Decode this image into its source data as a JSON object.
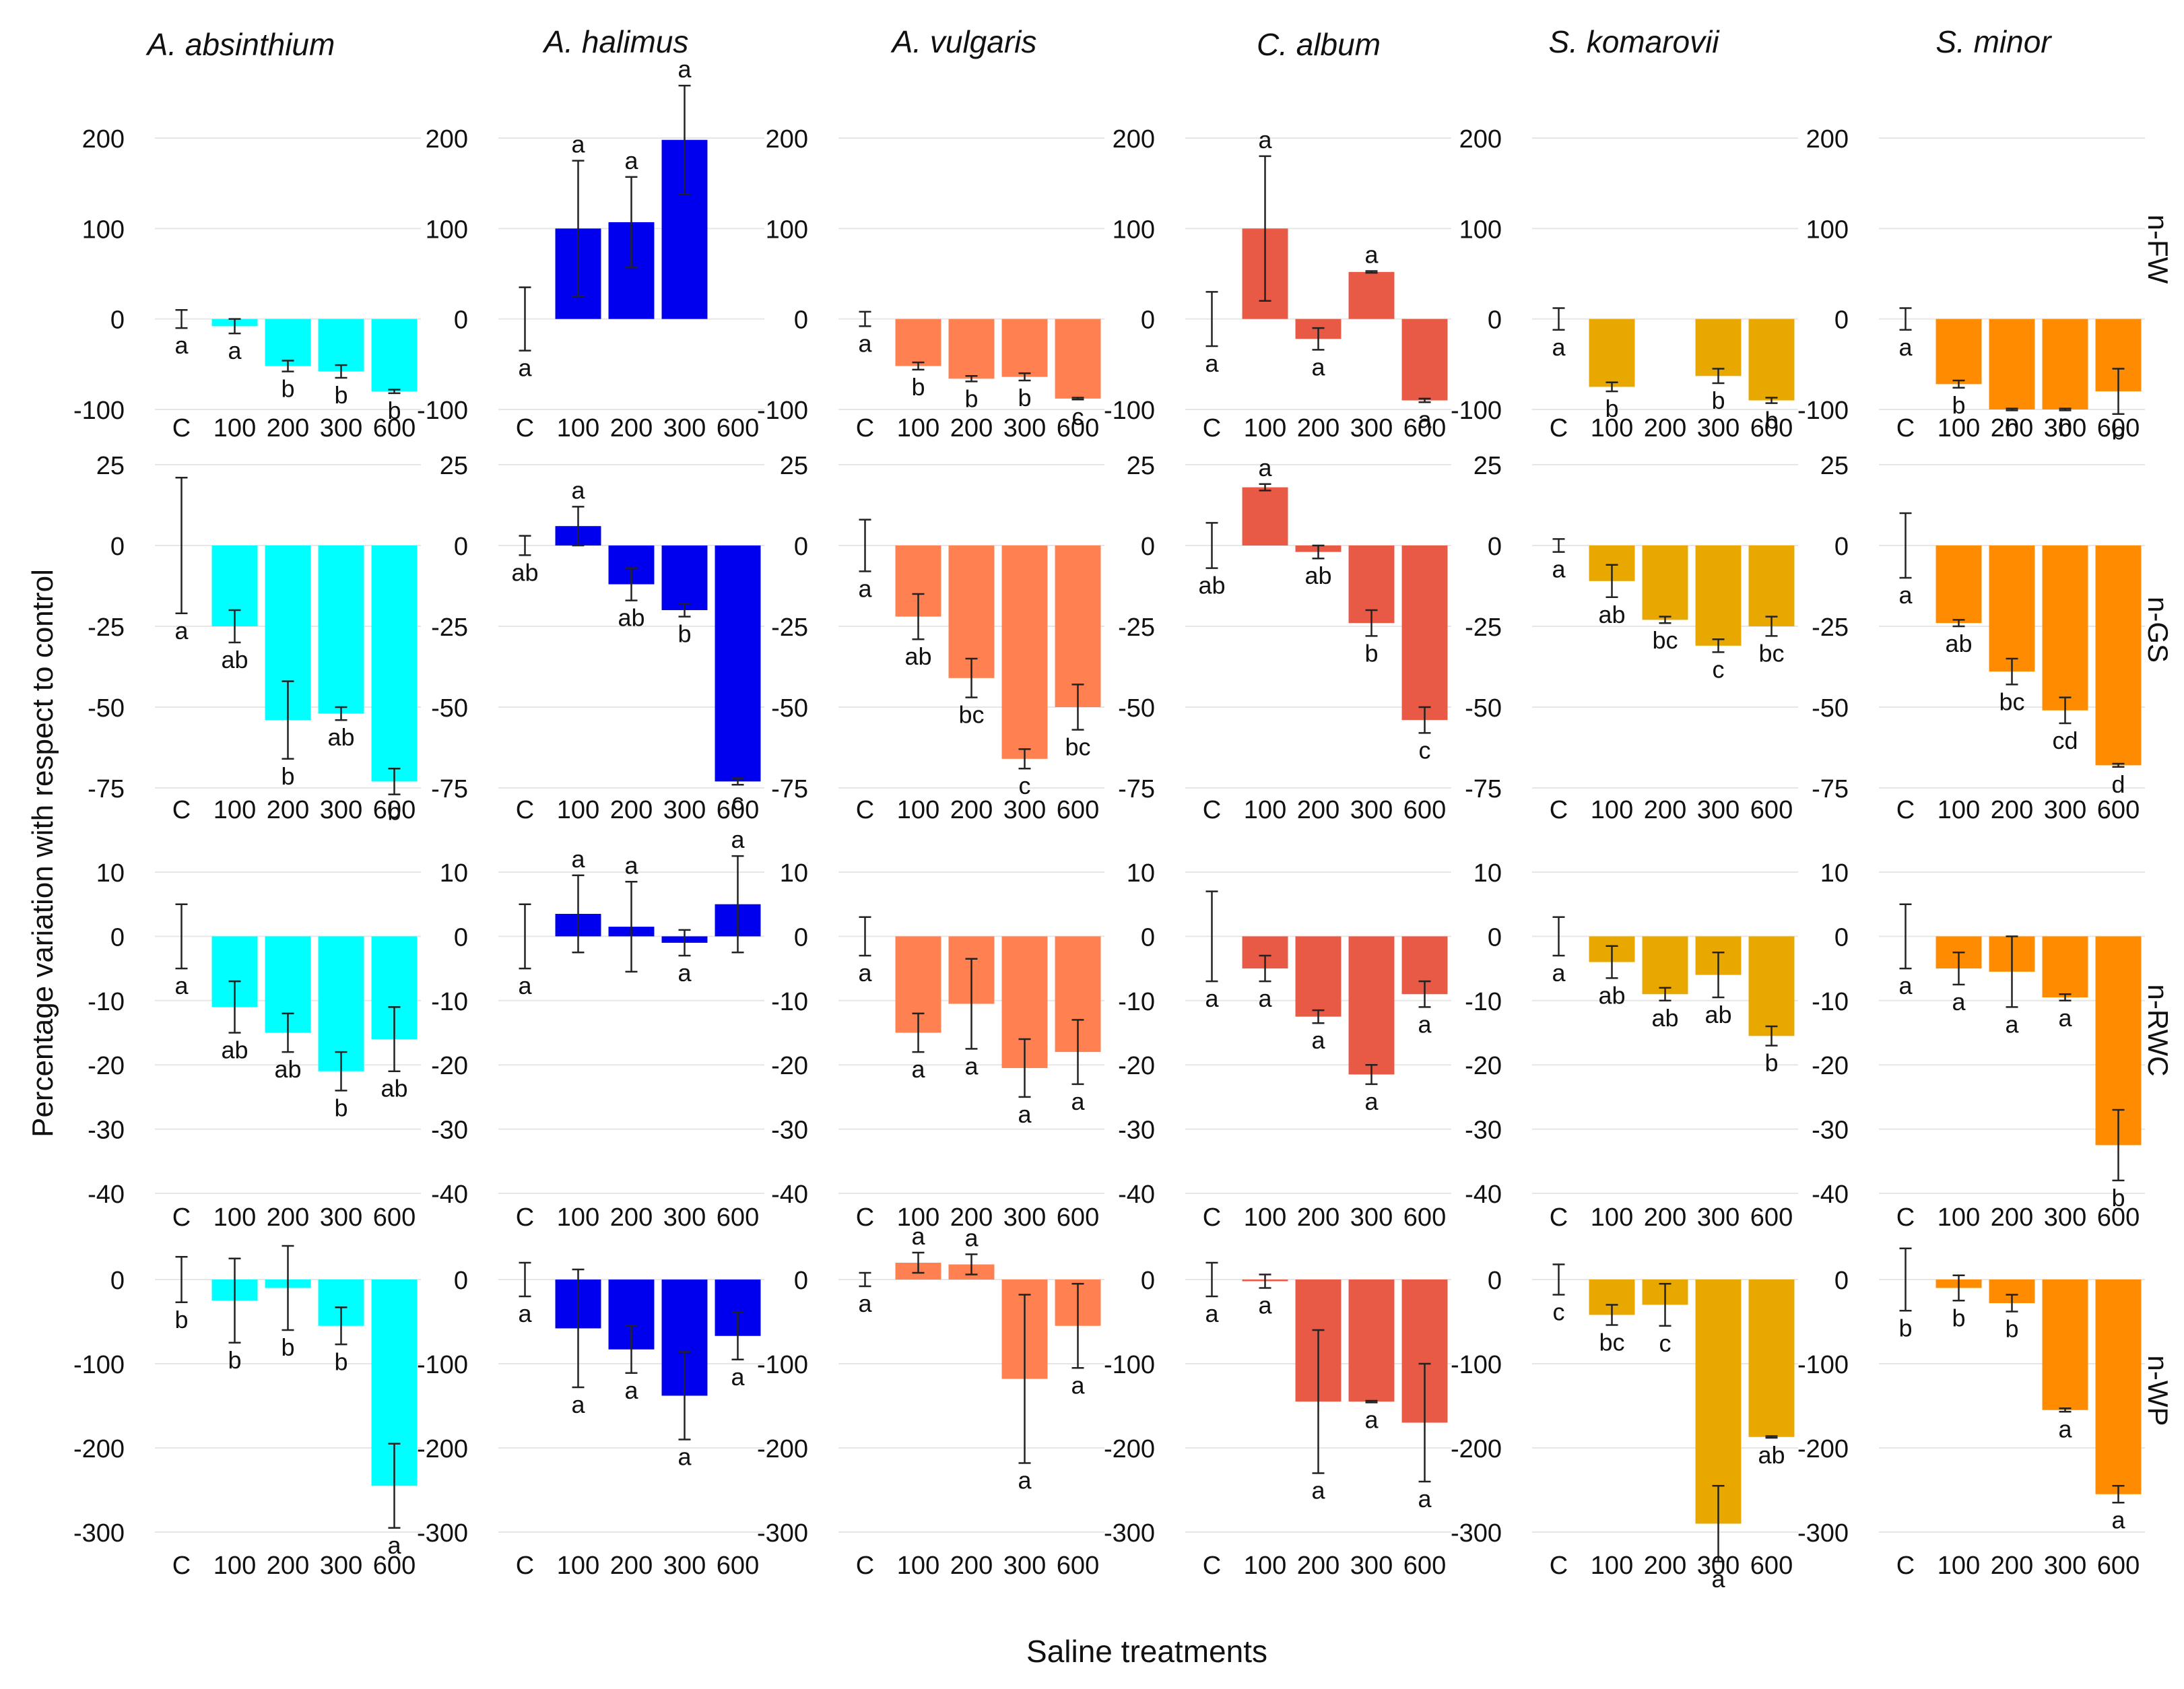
{
  "figure": {
    "xlabel": "Saline treatments",
    "ylabel": "Percentage variation with respect to control",
    "species": [
      "A. absinthium",
      "A. halimus",
      "A. vulgaris",
      "C. album",
      "S. komarovii",
      "S. minor"
    ],
    "colors": [
      "#00FFFF",
      "#0000EE",
      "#FF8050",
      "#E85A45",
      "#E8A800",
      "#FF8C00"
    ],
    "variables": [
      "n-FW",
      "n-GS",
      "n-RWC",
      "n-WP"
    ]
  },
  "chart_data": [
    {
      "type": "bar",
      "species": "A. absinthium",
      "variable": "n-FW",
      "categories": [
        "C",
        "100",
        "200",
        "300",
        "600"
      ],
      "ylim": [
        -100,
        200
      ],
      "yticks": [
        200,
        100,
        0,
        -100
      ],
      "values": [
        0,
        -8,
        -52,
        -58,
        -80
      ],
      "errors": [
        10,
        8,
        6,
        7,
        2
      ],
      "letters": [
        "a",
        "a",
        "b",
        "b",
        "b"
      ]
    },
    {
      "type": "bar",
      "species": "A. halimus",
      "variable": "n-FW",
      "categories": [
        "C",
        "100",
        "200",
        "300",
        "600"
      ],
      "ylim": [
        -100,
        200
      ],
      "yticks": [
        200,
        100,
        0,
        -100
      ],
      "values": [
        0,
        100,
        107,
        198,
        null
      ],
      "errors": [
        35,
        75,
        50,
        60,
        0
      ],
      "letters": [
        "a",
        "a",
        "a",
        "a",
        ""
      ]
    },
    {
      "type": "bar",
      "species": "A. vulgaris",
      "variable": "n-FW",
      "categories": [
        "C",
        "100",
        "200",
        "300",
        "600"
      ],
      "ylim": [
        -100,
        200
      ],
      "yticks": [
        200,
        100,
        0,
        -100
      ],
      "values": [
        0,
        -52,
        -66,
        -64,
        -88
      ],
      "errors": [
        8,
        4,
        3,
        4,
        1
      ],
      "letters": [
        "a",
        "b",
        "b",
        "b",
        "c"
      ]
    },
    {
      "type": "bar",
      "species": "C. album",
      "variable": "n-FW",
      "categories": [
        "C",
        "100",
        "200",
        "300",
        "600"
      ],
      "ylim": [
        -100,
        200
      ],
      "yticks": [
        200,
        100,
        0,
        -100
      ],
      "values": [
        0,
        100,
        -22,
        52,
        -90
      ],
      "errors": [
        30,
        80,
        12,
        1,
        2
      ],
      "letters": [
        "a",
        "a",
        "a",
        "a",
        "a"
      ]
    },
    {
      "type": "bar",
      "species": "S. komarovii",
      "variable": "n-FW",
      "categories": [
        "C",
        "100",
        "200",
        "300",
        "600"
      ],
      "ylim": [
        -100,
        200
      ],
      "yticks": [
        200,
        100,
        0,
        -100
      ],
      "values": [
        0,
        -75,
        null,
        -63,
        -90
      ],
      "errors": [
        12,
        5,
        0,
        8,
        3
      ],
      "letters": [
        "a",
        "b",
        "",
        "b",
        "b"
      ]
    },
    {
      "type": "bar",
      "species": "S. minor",
      "variable": "n-FW",
      "categories": [
        "C",
        "100",
        "200",
        "300",
        "600"
      ],
      "ylim": [
        -100,
        200
      ],
      "yticks": [
        200,
        100,
        0,
        -100
      ],
      "values": [
        0,
        -72,
        -100,
        -100,
        -80
      ],
      "errors": [
        12,
        4,
        1,
        1,
        25
      ],
      "letters": [
        "a",
        "b",
        "b",
        "b",
        "b"
      ]
    },
    {
      "type": "bar",
      "species": "A. absinthium",
      "variable": "n-GS",
      "categories": [
        "C",
        "100",
        "200",
        "300",
        "600"
      ],
      "ylim": [
        -75,
        25
      ],
      "yticks": [
        25,
        0,
        -25,
        -50,
        -75
      ],
      "values": [
        0,
        -25,
        -54,
        -52,
        -73
      ],
      "errors": [
        21,
        5,
        12,
        2,
        4
      ],
      "letters": [
        "a",
        "ab",
        "b",
        "ab",
        "b"
      ]
    },
    {
      "type": "bar",
      "species": "A. halimus",
      "variable": "n-GS",
      "categories": [
        "C",
        "100",
        "200",
        "300",
        "600"
      ],
      "ylim": [
        -75,
        25
      ],
      "yticks": [
        25,
        0,
        -25,
        -50,
        -75
      ],
      "values": [
        0,
        6,
        -12,
        -20,
        -73
      ],
      "errors": [
        3,
        6,
        5,
        2,
        1
      ],
      "letters": [
        "ab",
        "a",
        "ab",
        "b",
        "c"
      ]
    },
    {
      "type": "bar",
      "species": "A. vulgaris",
      "variable": "n-GS",
      "categories": [
        "C",
        "100",
        "200",
        "300",
        "600"
      ],
      "ylim": [
        -75,
        25
      ],
      "yticks": [
        25,
        0,
        -25,
        -50,
        -75
      ],
      "values": [
        0,
        -22,
        -41,
        -66,
        -50
      ],
      "errors": [
        8,
        7,
        6,
        3,
        7
      ],
      "letters": [
        "a",
        "ab",
        "bc",
        "c",
        "bc"
      ]
    },
    {
      "type": "bar",
      "species": "C. album",
      "variable": "n-GS",
      "categories": [
        "C",
        "100",
        "200",
        "300",
        "600"
      ],
      "ylim": [
        -75,
        25
      ],
      "yticks": [
        25,
        0,
        -25,
        -50,
        -75
      ],
      "values": [
        0,
        18,
        -2,
        -24,
        -54
      ],
      "errors": [
        7,
        1,
        2,
        4,
        4
      ],
      "letters": [
        "ab",
        "a",
        "ab",
        "b",
        "c"
      ]
    },
    {
      "type": "bar",
      "species": "S. komarovii",
      "variable": "n-GS",
      "categories": [
        "C",
        "100",
        "200",
        "300",
        "600"
      ],
      "ylim": [
        -75,
        25
      ],
      "yticks": [
        25,
        0,
        -25,
        -50,
        -75
      ],
      "values": [
        0,
        -11,
        -23,
        -31,
        -25
      ],
      "errors": [
        2,
        5,
        1,
        2,
        3
      ],
      "letters": [
        "a",
        "ab",
        "bc",
        "c",
        "bc"
      ]
    },
    {
      "type": "bar",
      "species": "S. minor",
      "variable": "n-GS",
      "categories": [
        "C",
        "100",
        "200",
        "300",
        "600"
      ],
      "ylim": [
        -75,
        25
      ],
      "yticks": [
        25,
        0,
        -25,
        -50,
        -75
      ],
      "values": [
        0,
        -24,
        -39,
        -51,
        -68
      ],
      "errors": [
        10,
        1,
        4,
        4,
        0.5
      ],
      "letters": [
        "a",
        "ab",
        "bc",
        "cd",
        "d"
      ]
    },
    {
      "type": "bar",
      "species": "A. absinthium",
      "variable": "n-RWC",
      "categories": [
        "C",
        "100",
        "200",
        "300",
        "600"
      ],
      "ylim": [
        -40,
        10
      ],
      "yticks": [
        10,
        0,
        -10,
        -20,
        -30,
        -40
      ],
      "values": [
        0,
        -11,
        -15,
        -21,
        -16
      ],
      "errors": [
        5,
        4,
        3,
        3,
        5
      ],
      "letters": [
        "a",
        "ab",
        "ab",
        "b",
        "ab"
      ]
    },
    {
      "type": "bar",
      "species": "A. halimus",
      "variable": "n-RWC",
      "categories": [
        "C",
        "100",
        "200",
        "300",
        "600"
      ],
      "ylim": [
        -40,
        10
      ],
      "yticks": [
        10,
        0,
        -10,
        -20,
        -30,
        -40
      ],
      "values": [
        0,
        3.5,
        1.5,
        -1,
        5
      ],
      "errors": [
        5,
        6,
        7,
        2,
        7.5
      ],
      "letters": [
        "a",
        "a",
        "a",
        "a",
        "a"
      ]
    },
    {
      "type": "bar",
      "species": "A. vulgaris",
      "variable": "n-RWC",
      "categories": [
        "C",
        "100",
        "200",
        "300",
        "600"
      ],
      "ylim": [
        -40,
        10
      ],
      "yticks": [
        10,
        0,
        -10,
        -20,
        -30,
        -40
      ],
      "values": [
        0,
        -15,
        -10.5,
        -20.5,
        -18
      ],
      "errors": [
        3,
        3,
        7,
        4.5,
        5
      ],
      "letters": [
        "a",
        "a",
        "a",
        "a",
        "a"
      ]
    },
    {
      "type": "bar",
      "species": "C. album",
      "variable": "n-RWC",
      "categories": [
        "C",
        "100",
        "200",
        "300",
        "600"
      ],
      "ylim": [
        -40,
        10
      ],
      "yticks": [
        10,
        0,
        -10,
        -20,
        -30,
        -40
      ],
      "values": [
        0,
        -5,
        -12.5,
        -21.5,
        -9
      ],
      "errors": [
        7,
        2,
        1,
        1.5,
        2
      ],
      "letters": [
        "a",
        "a",
        "a",
        "a",
        "a"
      ]
    },
    {
      "type": "bar",
      "species": "S. komarovii",
      "variable": "n-RWC",
      "categories": [
        "C",
        "100",
        "200",
        "300",
        "600"
      ],
      "ylim": [
        -40,
        10
      ],
      "yticks": [
        10,
        0,
        -10,
        -20,
        -30,
        -40
      ],
      "values": [
        0,
        -4,
        -9,
        -6,
        -15.5
      ],
      "errors": [
        3,
        2.5,
        1,
        3.5,
        1.5
      ],
      "letters": [
        "a",
        "ab",
        "ab",
        "ab",
        "b"
      ]
    },
    {
      "type": "bar",
      "species": "S. minor",
      "variable": "n-RWC",
      "categories": [
        "C",
        "100",
        "200",
        "300",
        "600"
      ],
      "ylim": [
        -40,
        10
      ],
      "yticks": [
        10,
        0,
        -10,
        -20,
        -30,
        -40
      ],
      "values": [
        0,
        -5,
        -5.5,
        -9.5,
        -32.5
      ],
      "errors": [
        5,
        2.5,
        5.5,
        0.5,
        5.5
      ],
      "letters": [
        "a",
        "a",
        "a",
        "a",
        "b"
      ]
    },
    {
      "type": "bar",
      "species": "A. absinthium",
      "variable": "n-WP",
      "categories": [
        "C",
        "100",
        "200",
        "300",
        "600"
      ],
      "ylim": [
        -300,
        0
      ],
      "yticks": [
        0,
        -100,
        -200,
        -300
      ],
      "values": [
        0,
        -25,
        -10,
        -55,
        -245
      ],
      "errors": [
        27,
        50,
        50,
        22,
        50
      ],
      "letters": [
        "b",
        "b",
        "b",
        "b",
        "a"
      ]
    },
    {
      "type": "bar",
      "species": "A. halimus",
      "variable": "n-WP",
      "categories": [
        "C",
        "100",
        "200",
        "300",
        "600"
      ],
      "ylim": [
        -300,
        0
      ],
      "yticks": [
        0,
        -100,
        -200,
        -300
      ],
      "values": [
        0,
        -58,
        -83,
        -138,
        -67
      ],
      "errors": [
        20,
        70,
        28,
        52,
        28
      ],
      "letters": [
        "a",
        "a",
        "a",
        "a",
        "a"
      ]
    },
    {
      "type": "bar",
      "species": "A. vulgaris",
      "variable": "n-WP",
      "categories": [
        "C",
        "100",
        "200",
        "300",
        "600"
      ],
      "ylim": [
        -300,
        0
      ],
      "yticks": [
        0,
        -100,
        -200,
        -300
      ],
      "values": [
        0,
        20,
        18,
        -118,
        -55
      ],
      "errors": [
        8,
        12,
        12,
        100,
        50
      ],
      "letters": [
        "a",
        "a",
        "a",
        "a",
        "a"
      ]
    },
    {
      "type": "bar",
      "species": "C. album",
      "variable": "n-WP",
      "categories": [
        "C",
        "100",
        "200",
        "300",
        "600"
      ],
      "ylim": [
        -300,
        0
      ],
      "yticks": [
        0,
        -100,
        -200,
        -300
      ],
      "values": [
        0,
        -2,
        -145,
        -145,
        -170
      ],
      "errors": [
        20,
        8,
        85,
        1,
        70
      ],
      "letters": [
        "a",
        "a",
        "a",
        "a",
        "a"
      ]
    },
    {
      "type": "bar",
      "species": "S. komarovii",
      "variable": "n-WP",
      "categories": [
        "C",
        "100",
        "200",
        "300",
        "600"
      ],
      "ylim": [
        -300,
        0
      ],
      "yticks": [
        0,
        -100,
        -200,
        -300
      ],
      "values": [
        0,
        -42,
        -30,
        -290,
        -187
      ],
      "errors": [
        18,
        12,
        25,
        45,
        1
      ],
      "letters": [
        "c",
        "bc",
        "c",
        "a",
        "ab"
      ]
    },
    {
      "type": "bar",
      "species": "S. minor",
      "variable": "n-WP",
      "categories": [
        "C",
        "100",
        "200",
        "300",
        "600"
      ],
      "ylim": [
        -300,
        0
      ],
      "yticks": [
        0,
        -100,
        -200,
        -300
      ],
      "values": [
        0,
        -10,
        -28,
        -155,
        -255
      ],
      "errors": [
        37,
        15,
        10,
        2,
        10
      ],
      "letters": [
        "b",
        "b",
        "b",
        "a",
        "a"
      ]
    }
  ]
}
